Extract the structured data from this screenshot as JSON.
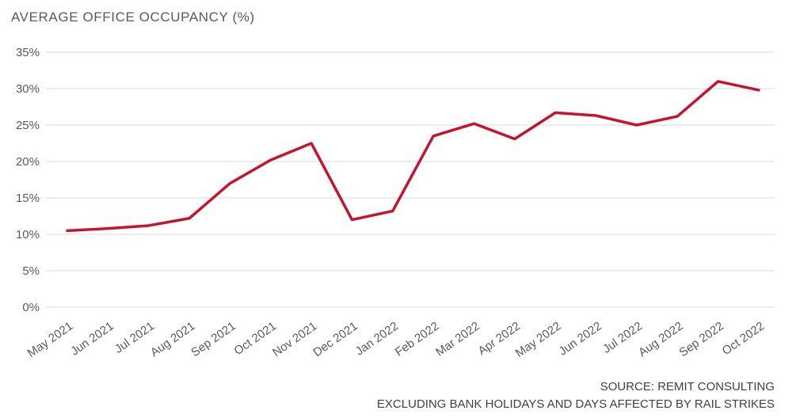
{
  "title": "AVERAGE OFFICE OCCUPANCY (%)",
  "source": {
    "line1": "SOURCE: REMIT CONSULTING",
    "line2": "EXCLUDING BANK HOLIDAYS AND DAYS AFFECTED BY RAIL STRIKES"
  },
  "colors": {
    "line": "#c6132e",
    "grid": "#d8d8d8",
    "text": "#58595b"
  },
  "chart_data": {
    "type": "line",
    "title": "AVERAGE OFFICE OCCUPANCY (%)",
    "categories": [
      "May 2021",
      "Jun 2021",
      "Jul 2021",
      "Aug 2021",
      "Sep 2021",
      "Oct 2021",
      "Nov 2021",
      "Dec 2021",
      "Jan 2022",
      "Feb 2022",
      "Mar 2022",
      "Apr 2022",
      "May 2022",
      "Jun 2022",
      "Jul 2022",
      "Aug 2022",
      "Sep 2022",
      "Oct 2022"
    ],
    "values": [
      10.5,
      10.8,
      11.2,
      12.2,
      17.0,
      20.2,
      22.5,
      12.0,
      13.2,
      23.5,
      25.2,
      23.1,
      26.7,
      26.3,
      25.0,
      26.2,
      31.0,
      29.8
    ],
    "xlabel": "",
    "ylabel": "",
    "ylim": [
      0,
      35
    ],
    "ytick_step": 5,
    "ytick_suffix": "%",
    "grid": true,
    "legend_position": "none",
    "annotation": "EXCLUDING BANK HOLIDAYS AND DAYS AFFECTED BY RAIL STRIKES",
    "source_label": "SOURCE: REMIT CONSULTING"
  }
}
